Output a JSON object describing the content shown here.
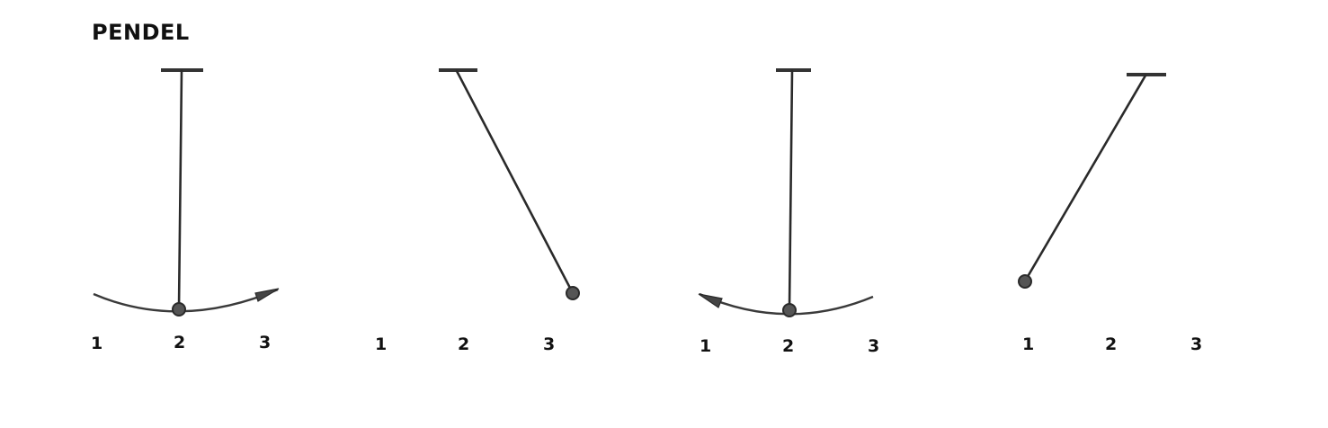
{
  "title": "PENDEL",
  "panels": [
    {
      "labels": [
        "1",
        "2",
        "3"
      ],
      "bob_position": "2",
      "motion_arrow": "right"
    },
    {
      "labels": [
        "1",
        "2",
        "3"
      ],
      "bob_position": "3",
      "motion_arrow": "none"
    },
    {
      "labels": [
        "1",
        "2",
        "3"
      ],
      "bob_position": "2",
      "motion_arrow": "left"
    },
    {
      "labels": [
        "1",
        "2",
        "3"
      ],
      "bob_position": "1",
      "motion_arrow": "none"
    }
  ]
}
